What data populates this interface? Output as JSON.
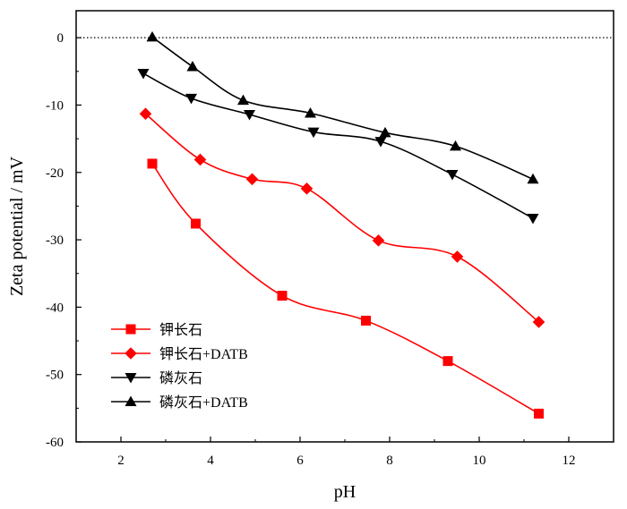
{
  "chart_data": {
    "type": "line",
    "title": "",
    "xlabel": "pH",
    "ylabel": "Zeta potential / mV",
    "xlim": [
      1,
      13
    ],
    "ylim": [
      -60,
      4
    ],
    "x_ticks": [
      2,
      4,
      6,
      8,
      10,
      12
    ],
    "y_ticks": [
      0,
      -10,
      -20,
      -30,
      -40,
      -50,
      -60
    ],
    "zero_reference_line": {
      "y": 0,
      "style": "dotted",
      "color": "#000000"
    },
    "legend_position": "bottom-left",
    "grid": false,
    "series": [
      {
        "name": "钾长石",
        "color": "#ff0000",
        "marker": "square",
        "points": [
          [
            2.7,
            -18.7
          ],
          [
            3.67,
            -27.6
          ],
          [
            5.6,
            -38.3
          ],
          [
            7.47,
            -42.0
          ],
          [
            9.3,
            -48.0
          ],
          [
            11.33,
            -55.8
          ]
        ]
      },
      {
        "name": "钾长石+DATB",
        "color": "#ff0000",
        "marker": "diamond",
        "points": [
          [
            2.55,
            -11.3
          ],
          [
            3.77,
            -18.1
          ],
          [
            4.93,
            -21.0
          ],
          [
            6.15,
            -22.4
          ],
          [
            7.75,
            -30.1
          ],
          [
            9.51,
            -32.5
          ],
          [
            11.33,
            -42.2
          ]
        ]
      },
      {
        "name": "磷灰石",
        "color": "#000000",
        "marker": "triangle-down",
        "points": [
          [
            2.5,
            -5.3
          ],
          [
            3.57,
            -9.0
          ],
          [
            4.87,
            -11.4
          ],
          [
            6.3,
            -14.0
          ],
          [
            7.8,
            -15.4
          ],
          [
            9.4,
            -20.3
          ],
          [
            11.2,
            -26.8
          ]
        ]
      },
      {
        "name": "磷灰石+DATB",
        "color": "#000000",
        "marker": "triangle-up",
        "points": [
          [
            2.7,
            0.1
          ],
          [
            3.6,
            -4.3
          ],
          [
            4.73,
            -9.3
          ],
          [
            6.23,
            -11.2
          ],
          [
            7.9,
            -14.1
          ],
          [
            9.47,
            -16.1
          ],
          [
            11.2,
            -21.0
          ]
        ]
      }
    ]
  }
}
